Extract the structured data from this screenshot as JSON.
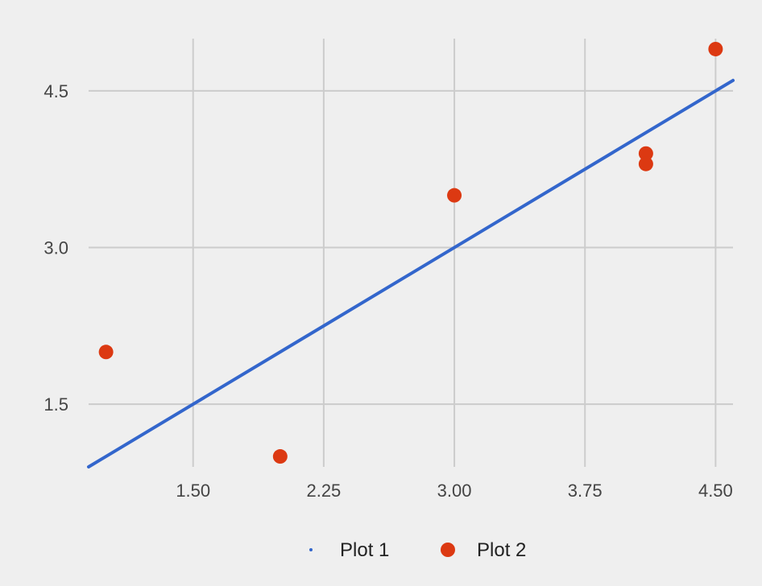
{
  "chart_data": {
    "type": "scatter",
    "title": "",
    "xlabel": "",
    "ylabel": "",
    "xlim": [
      0.9,
      4.6
    ],
    "ylim": [
      0.9,
      5.0
    ],
    "x_ticks": [
      1.5,
      2.25,
      3.0,
      3.75,
      4.5
    ],
    "x_tick_labels": [
      "1.50",
      "2.25",
      "3.00",
      "3.75",
      "4.50"
    ],
    "y_ticks": [
      1.5,
      3.0,
      4.5
    ],
    "y_tick_labels": [
      "1.5",
      "3.0",
      "4.5"
    ],
    "grid": true,
    "legend_position": "bottom",
    "series": [
      {
        "name": "Plot 1",
        "kind": "line",
        "color": "#3366cc",
        "x": [
          0.9,
          4.6
        ],
        "y": [
          0.9,
          4.6
        ]
      },
      {
        "name": "Plot 2",
        "kind": "scatter",
        "color": "#dc3912",
        "x": [
          1.0,
          2.0,
          3.0,
          4.1,
          4.1,
          4.5
        ],
        "y": [
          2.0,
          1.0,
          3.5,
          3.9,
          3.8,
          4.9
        ]
      }
    ]
  }
}
